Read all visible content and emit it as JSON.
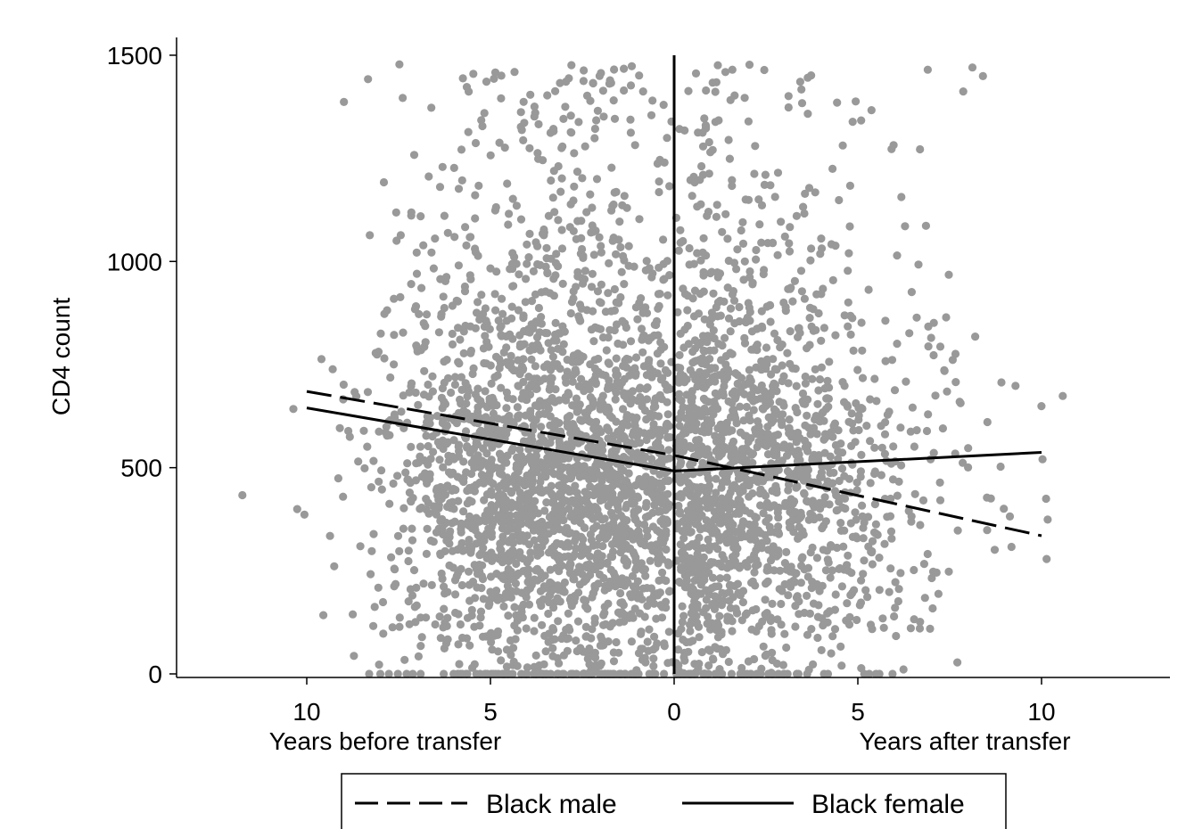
{
  "chart_data": {
    "type": "scatter",
    "title": "",
    "ylabel": "CD4 count",
    "xlabel_left": "Years before transfer",
    "xlabel_right": "Years after transfer",
    "xlim": [
      -14,
      13.5
    ],
    "ylim": [
      0,
      1500
    ],
    "xticks": [
      {
        "value": -10,
        "label": "10"
      },
      {
        "value": -5,
        "label": "5"
      },
      {
        "value": 0,
        "label": "0"
      },
      {
        "value": 5,
        "label": "5"
      },
      {
        "value": 10,
        "label": "10"
      }
    ],
    "yticks": [
      {
        "value": 0,
        "label": "0"
      },
      {
        "value": 500,
        "label": "500"
      },
      {
        "value": 1000,
        "label": "1000"
      },
      {
        "value": 1500,
        "label": "1500"
      }
    ],
    "grid": false,
    "reference_line_x": 0,
    "scatter_color": "#999999",
    "series": [
      {
        "name": "Black male",
        "style": "dashed",
        "color": "#000000",
        "x": [
          -10,
          0,
          10
        ],
        "y": [
          685,
          530,
          335
        ]
      },
      {
        "name": "Black female",
        "style": "solid",
        "color": "#000000",
        "x": [
          -10,
          0,
          10
        ],
        "y": [
          645,
          492,
          537
        ]
      }
    ],
    "legend": {
      "placement": "bottom",
      "entries": [
        "Black male",
        "Black female"
      ]
    }
  }
}
